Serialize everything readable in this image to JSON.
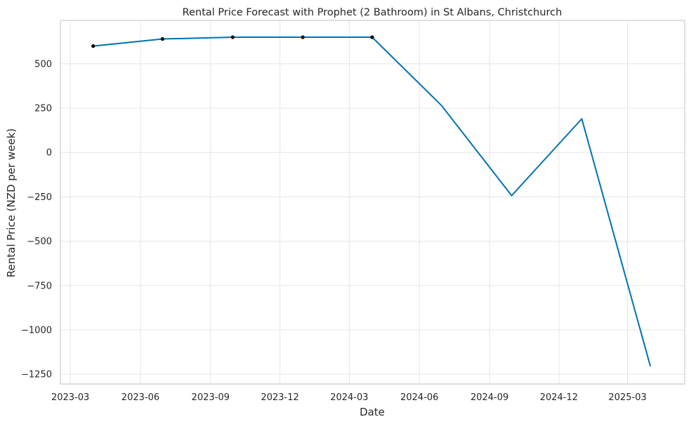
{
  "chart_data": {
    "type": "line",
    "title": "Rental Price Forecast with Prophet (2 Bathroom) in St Albans, Christchurch",
    "xlabel": "Date",
    "ylabel": "Rental Price (NZD per week)",
    "x_ticks": [
      "2023-03",
      "2023-06",
      "2023-09",
      "2023-12",
      "2024-03",
      "2024-06",
      "2024-09",
      "2024-12",
      "2025-03"
    ],
    "y_ticks": [
      500,
      250,
      0,
      -250,
      -500,
      -750,
      -1000,
      -1250
    ],
    "y_tick_labels": [
      "500",
      "250",
      "0",
      "−250",
      "−500",
      "−750",
      "−1000",
      "−1250"
    ],
    "xlim": [
      "2023-02-16",
      "2025-05-15"
    ],
    "ylim": [
      -1305,
      745
    ],
    "grid": true,
    "series": [
      {
        "kind": "forecast",
        "color": "#0072B2",
        "points": [
          {
            "x": "2023-03-31",
            "y": 600
          },
          {
            "x": "2023-06-30",
            "y": 640
          },
          {
            "x": "2023-09-30",
            "y": 650
          },
          {
            "x": "2023-12-31",
            "y": 650
          },
          {
            "x": "2024-03-31",
            "y": 650
          },
          {
            "x": "2024-06-30",
            "y": 265
          },
          {
            "x": "2024-09-30",
            "y": -243
          },
          {
            "x": "2024-12-31",
            "y": 190
          },
          {
            "x": "2025-03-31",
            "y": -1205
          }
        ]
      },
      {
        "kind": "observed",
        "color": "#000000",
        "points": [
          {
            "x": "2023-03-31",
            "y": 600
          },
          {
            "x": "2023-06-30",
            "y": 640
          },
          {
            "x": "2023-09-30",
            "y": 650
          },
          {
            "x": "2023-12-31",
            "y": 650
          },
          {
            "x": "2024-03-31",
            "y": 650
          }
        ]
      }
    ]
  }
}
